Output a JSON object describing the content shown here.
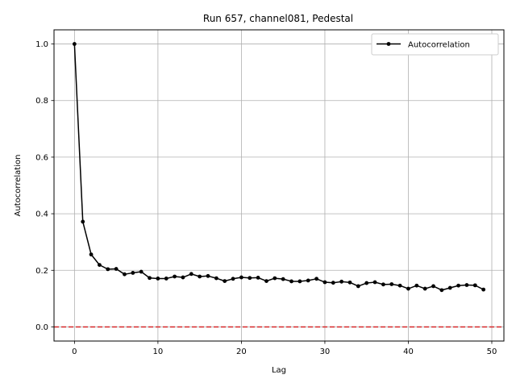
{
  "chart_data": {
    "type": "line",
    "title": "Run 657, channel081, Pedestal",
    "xlabel": "Lag",
    "ylabel": "Autocorrelation",
    "xlim": [
      -2.45,
      51.45
    ],
    "ylim": [
      -0.05,
      1.05
    ],
    "xticks": [
      0,
      10,
      20,
      30,
      40,
      50
    ],
    "yticks": [
      0.0,
      0.2,
      0.4,
      0.6,
      0.8,
      1.0
    ],
    "xtick_labels": [
      "0",
      "10",
      "20",
      "30",
      "40",
      "50"
    ],
    "ytick_labels": [
      "0.0",
      "0.2",
      "0.4",
      "0.6",
      "0.8",
      "1.0"
    ],
    "grid": true,
    "legend": {
      "position": "top-right"
    },
    "reference_line": {
      "y": 0.0,
      "color": "#d62728",
      "style": "dashed"
    },
    "series": [
      {
        "name": "Autocorrelation",
        "color": "#000000",
        "marker": "circle",
        "x": [
          0,
          1,
          2,
          3,
          4,
          5,
          6,
          7,
          8,
          9,
          10,
          11,
          12,
          13,
          14,
          15,
          16,
          17,
          18,
          19,
          20,
          21,
          22,
          23,
          24,
          25,
          26,
          27,
          28,
          29,
          30,
          31,
          32,
          33,
          34,
          35,
          36,
          37,
          38,
          39,
          40,
          41,
          42,
          43,
          44,
          45,
          46,
          47,
          48,
          49
        ],
        "y": [
          1.0,
          0.372,
          0.256,
          0.219,
          0.204,
          0.205,
          0.186,
          0.191,
          0.195,
          0.173,
          0.171,
          0.171,
          0.178,
          0.175,
          0.187,
          0.178,
          0.18,
          0.172,
          0.162,
          0.17,
          0.175,
          0.173,
          0.174,
          0.162,
          0.172,
          0.169,
          0.161,
          0.161,
          0.164,
          0.17,
          0.158,
          0.156,
          0.16,
          0.157,
          0.144,
          0.155,
          0.158,
          0.15,
          0.151,
          0.146,
          0.135,
          0.146,
          0.135,
          0.144,
          0.13,
          0.138,
          0.146,
          0.148,
          0.147,
          0.132
        ]
      }
    ]
  }
}
